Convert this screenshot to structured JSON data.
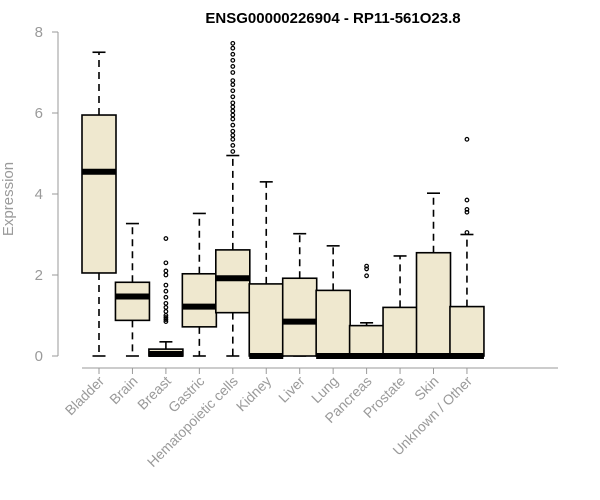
{
  "chart_data": {
    "type": "boxplot",
    "title": "ENSG00000226904 - RP11-561O23.8",
    "xlabel": "",
    "ylabel": "Expression",
    "ylim": [
      0,
      8
    ],
    "yticks": [
      0,
      2,
      4,
      6,
      8
    ],
    "box_color": "#efe8cf",
    "categories": [
      "Bladder",
      "Brain",
      "Breast",
      "Gastric",
      "Hematopoietic cells",
      "Kidney",
      "Liver",
      "Lung",
      "Pancreas",
      "Prostate",
      "Skin",
      "Unknown / Other"
    ],
    "series": [
      {
        "name": "Bladder",
        "whisker_low": 0.0,
        "q1": 2.05,
        "median": 4.55,
        "q3": 5.95,
        "whisker_high": 7.5,
        "outliers": []
      },
      {
        "name": "Brain",
        "whisker_low": 0.0,
        "q1": 0.88,
        "median": 1.47,
        "q3": 1.82,
        "whisker_high": 3.27,
        "outliers": []
      },
      {
        "name": "Breast",
        "whisker_low": 0.0,
        "q1": 0.0,
        "median": 0.05,
        "q3": 0.17,
        "whisker_high": 0.35,
        "outliers": [
          0.85,
          0.9,
          0.95,
          1.0,
          1.1,
          1.2,
          1.3,
          1.45,
          1.6,
          1.75,
          2.0,
          2.1,
          2.3,
          2.9
        ]
      },
      {
        "name": "Gastric",
        "whisker_low": 0.0,
        "q1": 0.72,
        "median": 1.22,
        "q3": 2.03,
        "whisker_high": 3.52,
        "outliers": []
      },
      {
        "name": "Hematopoietic cells",
        "whisker_low": 0.0,
        "q1": 1.07,
        "median": 1.92,
        "q3": 2.62,
        "whisker_high": 4.95,
        "outliers": [
          5.05,
          5.2,
          5.35,
          5.45,
          5.55,
          5.7,
          5.85,
          5.95,
          6.05,
          6.15,
          6.25,
          6.4,
          6.55,
          6.7,
          6.8,
          7.0,
          7.15,
          7.3,
          7.45,
          7.6,
          7.72
        ]
      },
      {
        "name": "Kidney",
        "whisker_low": 0.0,
        "q1": 0.0,
        "median": 0.0,
        "q3": 1.78,
        "whisker_high": 4.3,
        "outliers": []
      },
      {
        "name": "Liver",
        "whisker_low": 0.0,
        "q1": 0.0,
        "median": 0.85,
        "q3": 1.92,
        "whisker_high": 3.02,
        "outliers": []
      },
      {
        "name": "Lung",
        "whisker_low": 0.0,
        "q1": 0.0,
        "median": 0.0,
        "q3": 1.62,
        "whisker_high": 2.72,
        "outliers": []
      },
      {
        "name": "Pancreas",
        "whisker_low": 0.0,
        "q1": 0.0,
        "median": 0.0,
        "q3": 0.75,
        "whisker_high": 0.82,
        "outliers": [
          1.98,
          2.15,
          2.22
        ]
      },
      {
        "name": "Prostate",
        "whisker_low": 0.0,
        "q1": 0.0,
        "median": 0.0,
        "q3": 1.2,
        "whisker_high": 2.47,
        "outliers": []
      },
      {
        "name": "Skin",
        "whisker_low": 0.0,
        "q1": 0.0,
        "median": 0.0,
        "q3": 2.55,
        "whisker_high": 4.02,
        "outliers": []
      },
      {
        "name": "Unknown / Other",
        "whisker_low": 0.0,
        "q1": 0.0,
        "median": 0.0,
        "q3": 1.22,
        "whisker_high": 3.0,
        "outliers": [
          3.05,
          3.55,
          3.62,
          3.85,
          5.35
        ]
      }
    ]
  }
}
